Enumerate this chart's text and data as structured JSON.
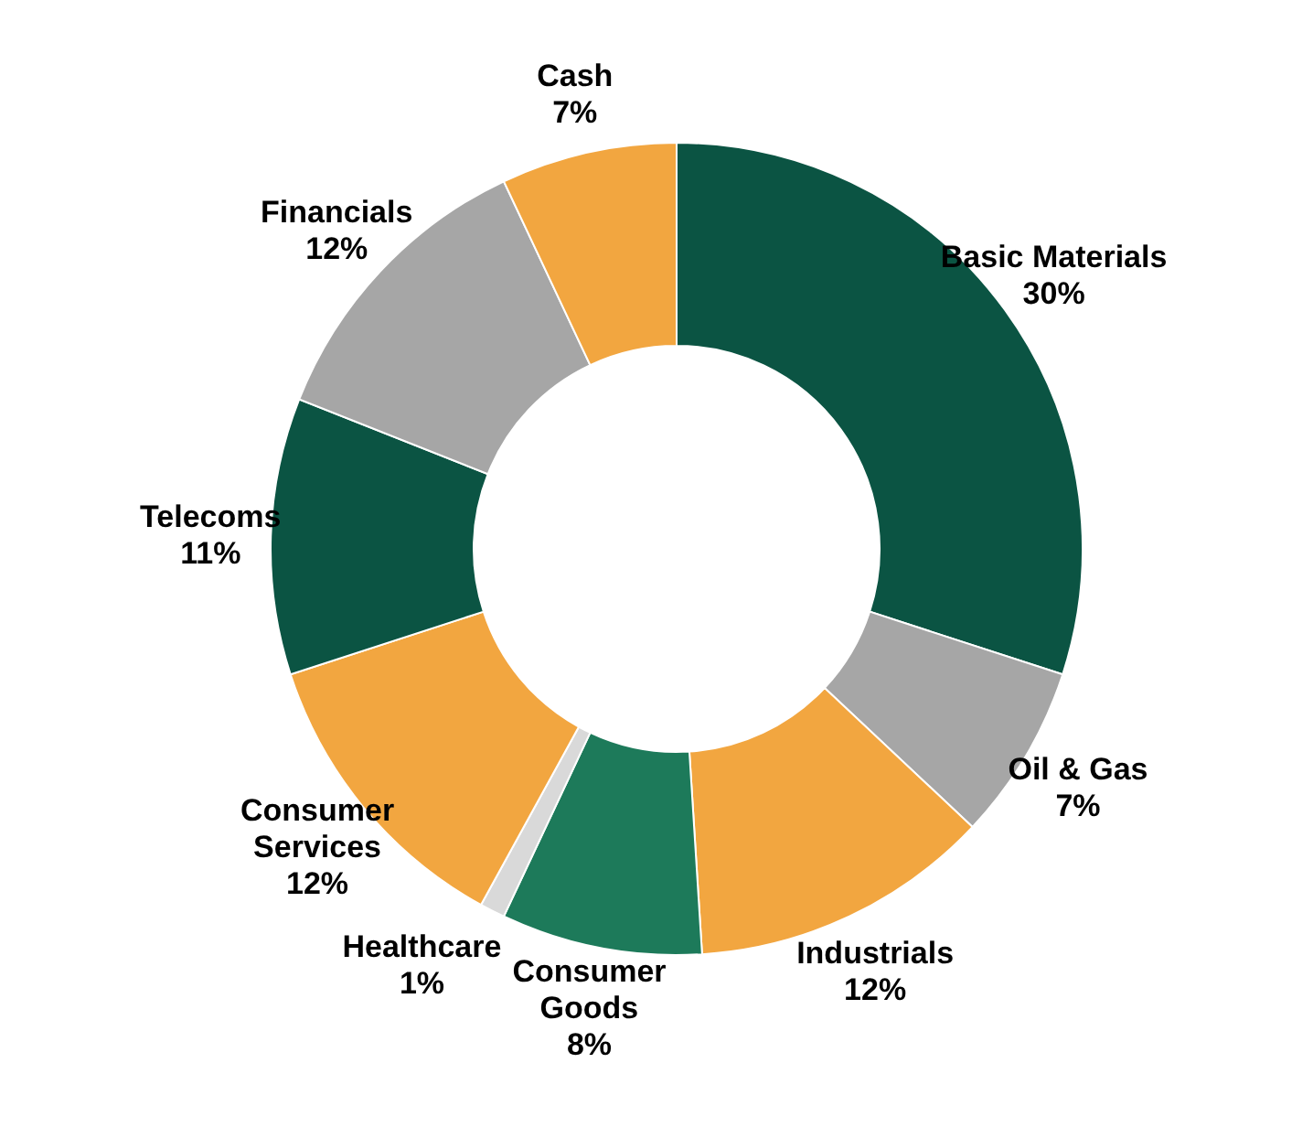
{
  "chart_data": {
    "type": "donut",
    "categories": [
      "Basic Materials",
      "Oil & Gas",
      "Industrials",
      "Consumer Goods",
      "Healthcare",
      "Consumer Services",
      "Telecoms",
      "Financials",
      "Cash"
    ],
    "values": [
      30,
      7,
      12,
      8,
      1,
      12,
      11,
      12,
      7
    ],
    "value_labels": [
      "30%",
      "7%",
      "12%",
      "8%",
      "1%",
      "12%",
      "11%",
      "12%",
      "7%"
    ],
    "colors": [
      "#0b5443",
      "#a6a6a6",
      "#f2a640",
      "#1d7a5a",
      "#d9d9d9",
      "#f2a640",
      "#0b5443",
      "#a6a6a6",
      "#f2a640"
    ]
  }
}
